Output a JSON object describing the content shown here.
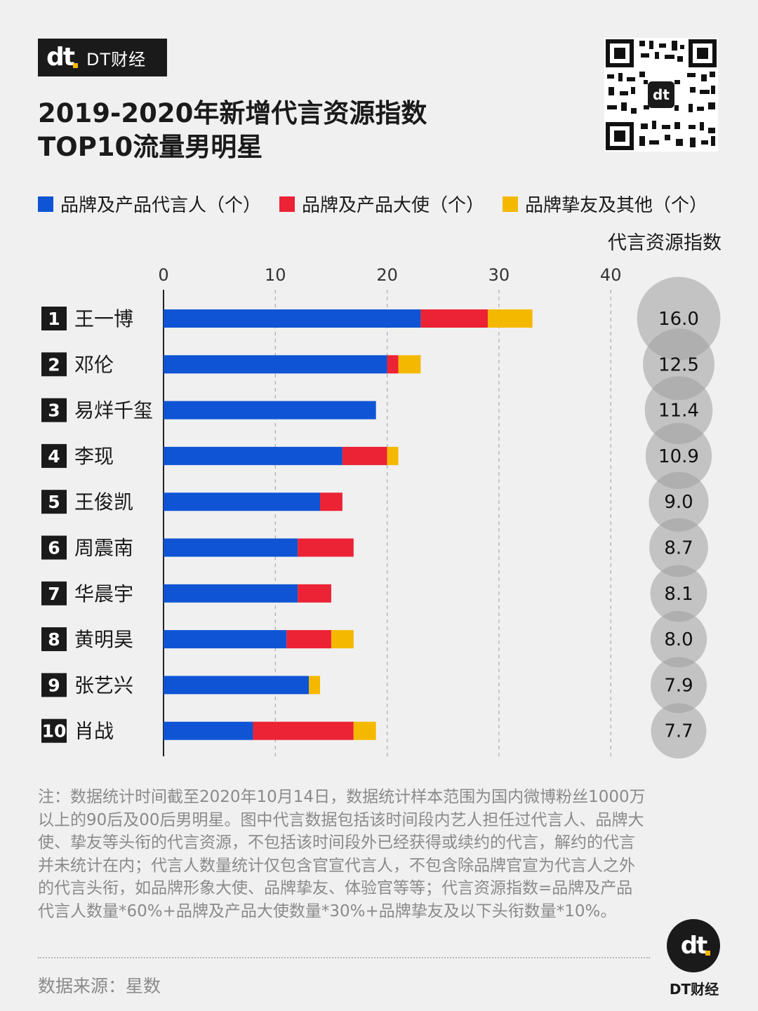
{
  "brand": {
    "logo_text": "dt",
    "name": "DT财经"
  },
  "title_line1": "2019-2020年新增代言资源指数",
  "title_line2": "TOP10流量男明星",
  "index_header": "代言资源指数",
  "colors": {
    "blue": "#0e54d4",
    "red": "#ec2235",
    "yellow": "#f5b800"
  },
  "chart_data": {
    "type": "bar",
    "orientation": "horizontal",
    "stacked": true,
    "title": "2019-2020年新增代言资源指数 TOP10流量男明星",
    "xlim": [
      0,
      40
    ],
    "xticks": [
      0,
      10,
      20,
      30,
      40
    ],
    "ranks": [
      "1",
      "2",
      "3",
      "4",
      "5",
      "6",
      "7",
      "8",
      "9",
      "10"
    ],
    "categories": [
      "王一博",
      "邓伦",
      "易烊千玺",
      "李现",
      "王俊凯",
      "周震南",
      "华晨宇",
      "黄明昊",
      "张艺兴",
      "肖战"
    ],
    "series": [
      {
        "name": "品牌及产品代言人（个）",
        "color": "#0e54d4",
        "values": [
          23,
          20,
          19,
          16,
          14,
          12,
          12,
          11,
          13,
          8
        ]
      },
      {
        "name": "品牌及产品大使（个）",
        "color": "#ec2235",
        "values": [
          6,
          1,
          0,
          4,
          2,
          5,
          3,
          4,
          0,
          9
        ]
      },
      {
        "name": "品牌挚友及其他（个）",
        "color": "#f5b800",
        "values": [
          4,
          2,
          0,
          1,
          0,
          0,
          0,
          2,
          1,
          2
        ]
      }
    ],
    "index_values": [
      "16.0",
      "12.5",
      "11.4",
      "10.9",
      "9.0",
      "8.7",
      "8.1",
      "8.0",
      "7.9",
      "7.7"
    ]
  },
  "note": "注：数据统计时间截至2020年10月14日，数据统计样本范围为国内微博粉丝1000万以上的90后及00后男明星。图中代言数据包括该时间段内艺人担任过代言人、品牌大使、挚友等头衔的代言资源，不包括该时间段外已经获得或续约的代言，解约的代言并未统计在内；代言人数量统计仅包含官宣代言人，不包含除品牌官宣为代言人之外的代言头衔，如品牌形象大使、品牌挚友、体验官等等；代言资源指数=品牌及产品代言人数量*60%+品牌及产品大使数量*30%+品牌挚友及以下头衔数量*10%。",
  "source": "数据来源：星数",
  "footer_name": "DT财经"
}
